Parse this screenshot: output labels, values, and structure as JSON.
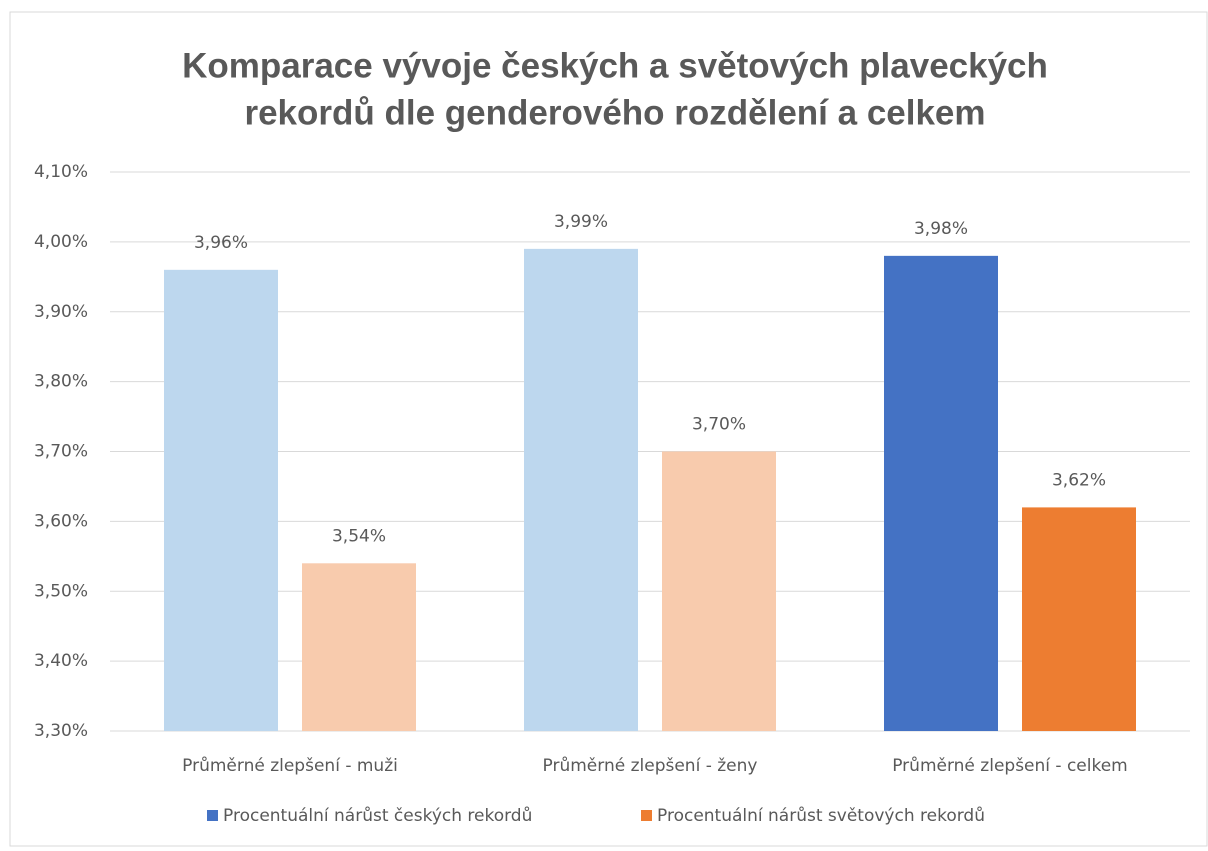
{
  "chart_data": {
    "type": "bar",
    "title": [
      "Komparace vývoje českých a světových plaveckých",
      "rekordů dle genderového rozdělení a celkem"
    ],
    "categories": [
      "Průměrné zlepšení - muži",
      "Průměrné zlepšení - ženy",
      "Průměrné zlepšení - celkem"
    ],
    "series": [
      {
        "name": "Procentuální nárůst českých rekordů",
        "color": "#4472c4",
        "point_colors": [
          "#bdd7ee",
          "#bdd7ee",
          "#4472c4"
        ],
        "values": [
          3.96,
          3.99,
          3.98
        ],
        "value_labels": [
          "3,96%",
          "3,99%",
          "3,98%"
        ]
      },
      {
        "name": "Procentuální nárůst světových rekordů",
        "color": "#ed7d31",
        "point_colors": [
          "#f8cbad",
          "#f8cbad",
          "#ed7d31"
        ],
        "values": [
          3.54,
          3.7,
          3.62
        ],
        "value_labels": [
          "3,54%",
          "3,70%",
          "3,62%"
        ]
      }
    ],
    "ylim": [
      3.3,
      4.1
    ],
    "yticks": [
      {
        "value": 3.3,
        "label": "3,30%"
      },
      {
        "value": 3.4,
        "label": "3,40%"
      },
      {
        "value": 3.5,
        "label": "3,50%"
      },
      {
        "value": 3.6,
        "label": "3,60%"
      },
      {
        "value": 3.7,
        "label": "3,70%"
      },
      {
        "value": 3.8,
        "label": "3,80%"
      },
      {
        "value": 3.9,
        "label": "3,90%"
      },
      {
        "value": 4.0,
        "label": "4,00%"
      },
      {
        "value": 4.1,
        "label": "4,10%"
      }
    ],
    "grid": true,
    "legend": "bottom"
  }
}
